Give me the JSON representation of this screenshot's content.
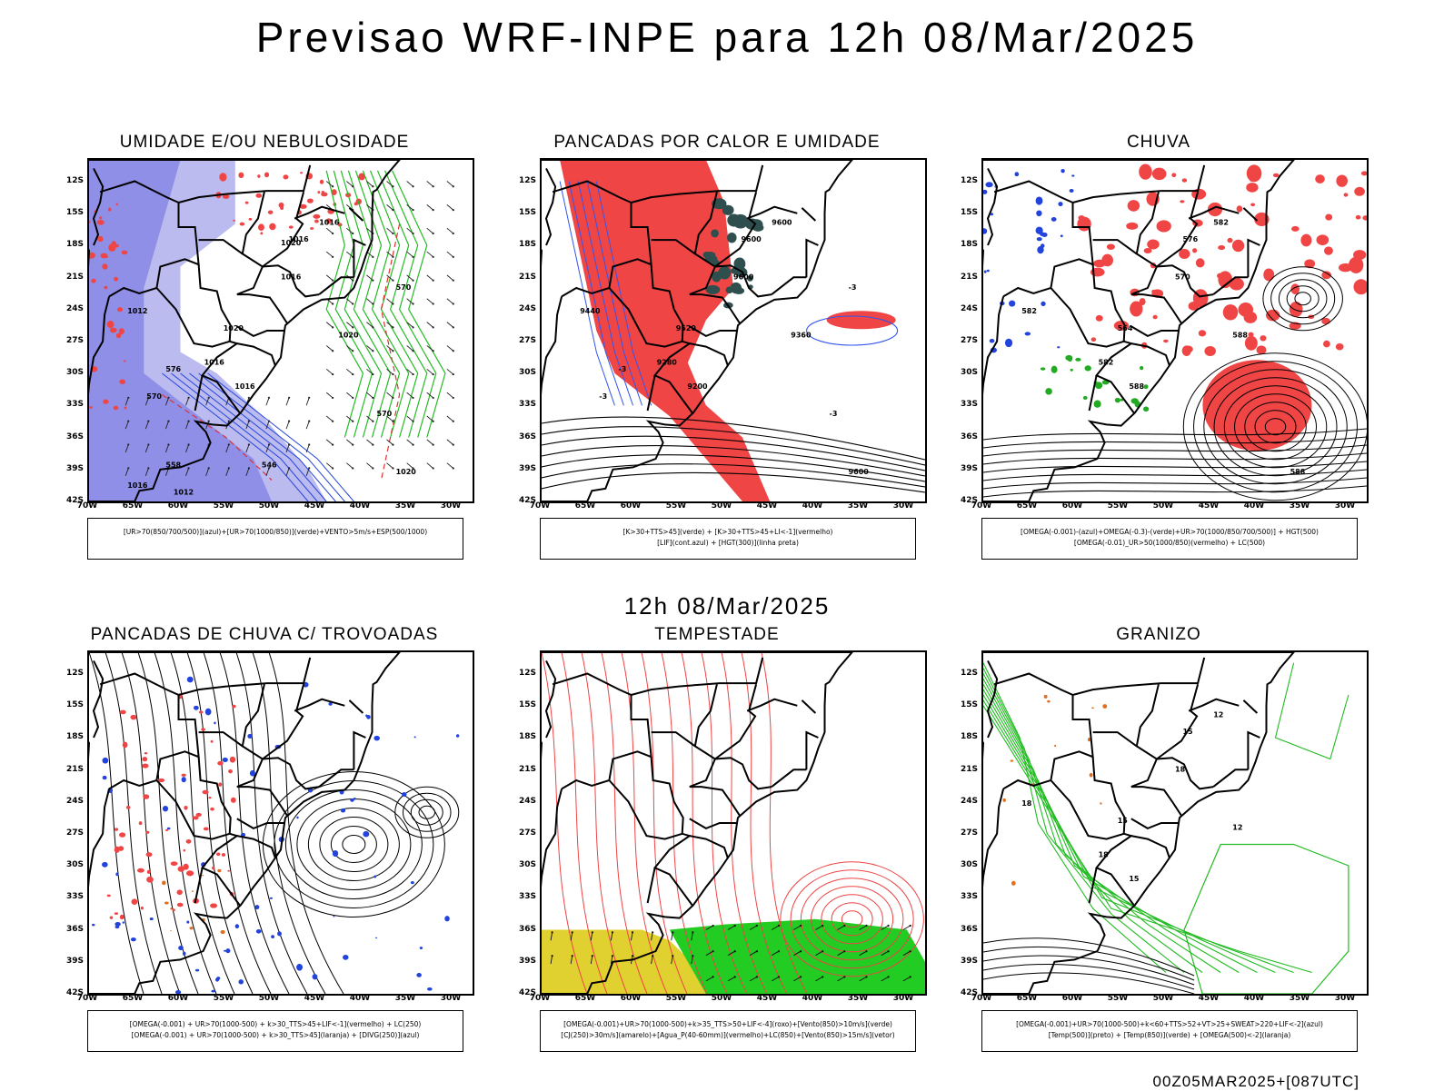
{
  "title": "Previsao WRF-INPE  para 12h 08/Mar/2025",
  "mid_title": "12h 08/Mar/2025",
  "footer": "00Z05MAR2025+[087UTC]",
  "lat_labels": [
    "12S",
    "15S",
    "18S",
    "21S",
    "24S",
    "27S",
    "30S",
    "33S",
    "36S",
    "39S",
    "42S"
  ],
  "lon_labels": [
    "70W",
    "65W",
    "60W",
    "55W",
    "50W",
    "45W",
    "40W",
    "35W",
    "30W"
  ],
  "panels": [
    {
      "title": "UMIDADE E/OU NEBULOSIDADE",
      "legend": [
        "[UR>70(850/700/500)](azul)+[UR>70(1000/850)](verde)+VENTO>5m/s+ESP(500/1000)"
      ],
      "labels": [
        "1016",
        "1016",
        "1016",
        "1020",
        "1012",
        "1020",
        "1016",
        "1016",
        "1020",
        "570",
        "570",
        "576",
        "570",
        "558",
        "546",
        "1016",
        "1012",
        "1020"
      ]
    },
    {
      "title": "PANCADAS POR CALOR E UMIDADE",
      "legend": [
        "[K>30+TTS>45](verde) + [K>30+TTS>45+LI<-1](vermelho)",
        "[LIF](cont.azul) + [HGT(300)](linha preta)"
      ],
      "labels": [
        "9600",
        "9600",
        "9600",
        "9520",
        "9440",
        "9360",
        "9280",
        "9200",
        "9600",
        "-3",
        "-3",
        "-3",
        "-3"
      ]
    },
    {
      "title": "CHUVA",
      "legend": [
        "[OMEGA(-0.001)-(azul)+OMEGA(-0.3)-(verde)+UR>70(1000/850/700/500)] + HGT(500)",
        "[OMEGA(-0.01)_UR>50(1000/850)(vermelho) + LC(500)"
      ],
      "labels": [
        "582",
        "576",
        "570",
        "564",
        "582",
        "588",
        "582",
        "588",
        "588"
      ]
    },
    {
      "title": "PANCADAS DE CHUVA C/ TROVOADAS",
      "legend": [
        "[OMEGA(-0.001) + UR>70(1000-500) + k>30_TTS>45+LIF<-1](vermelho) + LC(250)",
        "[OMEGA(-0.001) + UR>70(1000-500) + k>30_TTS>45](laranja) + [DIVG(250)](azul)"
      ],
      "labels": []
    },
    {
      "title": "TEMPESTADE",
      "legend": [
        "[OMEGA(-0.001)+UR>70(1000-500)+k>35_TTS>50+LIF<-4](roxo)+[Vento(850)>10m/s](verde)",
        "[CJ(250)>30m/s](amarelo)+[Agua_P(40-60mm)](vermelho)+LC(850)+[Vento(850)>15m/s](vetor)"
      ],
      "labels": []
    },
    {
      "title": "GRANIZO",
      "legend": [
        "[OMEGA(-0.001)+UR>70(1000-500)+k<60+TTS>52+VT>25+SWEAT>220+LIF<-2](azul)",
        "[Temp(500)](preto) + [Temp(850)](verde) + [OMEGA(500)<-2](laranja)"
      ],
      "labels": [
        "12",
        "15",
        "18",
        "15",
        "18",
        "12",
        "18",
        "15"
      ]
    }
  ]
}
